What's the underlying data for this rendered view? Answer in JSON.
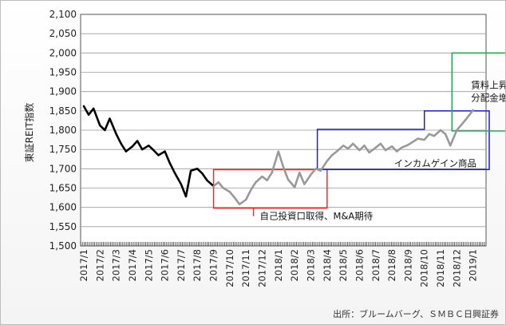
{
  "chart_data": {
    "type": "line",
    "ylabel": "東証REIT指数",
    "ylim": [
      1500,
      2100
    ],
    "yticks": [
      1500,
      1550,
      1600,
      1650,
      1700,
      1750,
      1800,
      1850,
      1900,
      1950,
      2000,
      2050,
      2100
    ],
    "ytick_labels": [
      "1,500",
      "1,550",
      "1,600",
      "1,650",
      "1,700",
      "1,750",
      "1,800",
      "1,850",
      "1,900",
      "1,950",
      "2,000",
      "2,050",
      "2,100"
    ],
    "xtick_labels": [
      "2017/1",
      "2017/2",
      "2017/3",
      "2017/4",
      "2017/5",
      "2017/6",
      "2017/7",
      "2017/8",
      "2017/9",
      "2017/10",
      "2017/11",
      "2017/12",
      "2018/1",
      "2018/2",
      "2018/3",
      "2018/4",
      "2018/5",
      "2018/6",
      "2018/7",
      "2018/8",
      "2018/9",
      "2018/10",
      "2018/11",
      "2018/12",
      "2019/1"
    ],
    "grid": "horizontal",
    "series": [
      {
        "color": "#000000",
        "style": "solid-thick",
        "points": [
          [
            "2017/1",
            1862
          ],
          [
            "2017/1.3",
            1840
          ],
          [
            "2017/1.6",
            1856
          ],
          [
            "2017/2",
            1812
          ],
          [
            "2017/2.3",
            1800
          ],
          [
            "2017/2.6",
            1830
          ],
          [
            "2017/3",
            1790
          ],
          [
            "2017/3.3",
            1765
          ],
          [
            "2017/3.6",
            1745
          ],
          [
            "2017/4",
            1758
          ],
          [
            "2017/4.3",
            1772
          ],
          [
            "2017/4.6",
            1750
          ],
          [
            "2017/5",
            1760
          ],
          [
            "2017/5.3",
            1748
          ],
          [
            "2017/5.6",
            1735
          ],
          [
            "2017/6",
            1745
          ],
          [
            "2017/6.3",
            1715
          ],
          [
            "2017/6.6",
            1690
          ],
          [
            "2017/7",
            1660
          ],
          [
            "2017/7.3",
            1628
          ],
          [
            "2017/7.6",
            1695
          ],
          [
            "2017/8",
            1700
          ],
          [
            "2017/8.3",
            1688
          ],
          [
            "2017/8.6",
            1670
          ],
          [
            "2017/9",
            1655
          ]
        ]
      },
      {
        "color": "#999999",
        "style": "solid-thick",
        "points": [
          [
            "2017/9",
            1655
          ],
          [
            "2017/9.3",
            1665
          ],
          [
            "2017/9.6",
            1650
          ],
          [
            "2017/10",
            1640
          ],
          [
            "2017/10.3",
            1625
          ],
          [
            "2017/10.6",
            1608
          ],
          [
            "2017/11",
            1620
          ],
          [
            "2017/11.3",
            1645
          ],
          [
            "2017/11.6",
            1665
          ],
          [
            "2017/12",
            1680
          ],
          [
            "2017/12.3",
            1670
          ],
          [
            "2017/12.6",
            1690
          ],
          [
            "2018/1",
            1745
          ],
          [
            "2018/1.3",
            1705
          ],
          [
            "2018/1.6",
            1672
          ],
          [
            "2018/2",
            1652
          ],
          [
            "2018/2.3",
            1690
          ],
          [
            "2018/2.6",
            1660
          ],
          [
            "2018/3",
            1685
          ],
          [
            "2018/3.3",
            1700
          ],
          [
            "2018/3.6",
            1695
          ],
          [
            "2018/4",
            1720
          ],
          [
            "2018/4.3",
            1735
          ],
          [
            "2018/4.6",
            1745
          ],
          [
            "2018/5",
            1760
          ],
          [
            "2018/5.3",
            1752
          ],
          [
            "2018/5.6",
            1765
          ],
          [
            "2018/6",
            1748
          ],
          [
            "2018/6.3",
            1760
          ],
          [
            "2018/6.6",
            1742
          ],
          [
            "2018/7",
            1755
          ],
          [
            "2018/7.3",
            1765
          ],
          [
            "2018/7.6",
            1748
          ],
          [
            "2018/8",
            1758
          ],
          [
            "2018/8.3",
            1745
          ],
          [
            "2018/8.6",
            1755
          ],
          [
            "2018/9",
            1762
          ],
          [
            "2018/9.3",
            1770
          ],
          [
            "2018/9.6",
            1778
          ],
          [
            "2018/10",
            1775
          ],
          [
            "2018/10.3",
            1790
          ],
          [
            "2018/10.6",
            1785
          ],
          [
            "2018/11",
            1800
          ],
          [
            "2018/11.3",
            1790
          ],
          [
            "2018/11.6",
            1760
          ],
          [
            "2018/12",
            1800
          ],
          [
            "2018/12.3",
            1815
          ],
          [
            "2018/12.6",
            1830
          ],
          [
            "2019/1",
            1852
          ]
        ]
      }
    ],
    "annotations": [
      {
        "text": "自己投資口取得、M&A期待",
        "color": "#e03030",
        "region": {
          "x0": "2017/9",
          "x1": "2018/4",
          "y0": 1598,
          "y1": 1698
        }
      },
      {
        "text": "インカムゲイン商品",
        "color": "#1f1fcc",
        "region_steps": [
          {
            "x0": "2018/3.4",
            "x1": "2018/10",
            "y": 1802
          },
          {
            "x0": "2018/10",
            "x1": "2019/2",
            "y": 1850
          }
        ],
        "y_bottom": 1698
      },
      {
        "text_lines": [
          "賃料上昇等での",
          "分配金増加期待"
        ],
        "color": "#22aa55",
        "region": {
          "x0": "2018/11.7",
          "x1": "2019/3.4",
          "y0": 1798,
          "y1": 2000
        }
      }
    ],
    "source": "出所：ブルームバーグ、ＳＭＢＣ日興証券"
  }
}
